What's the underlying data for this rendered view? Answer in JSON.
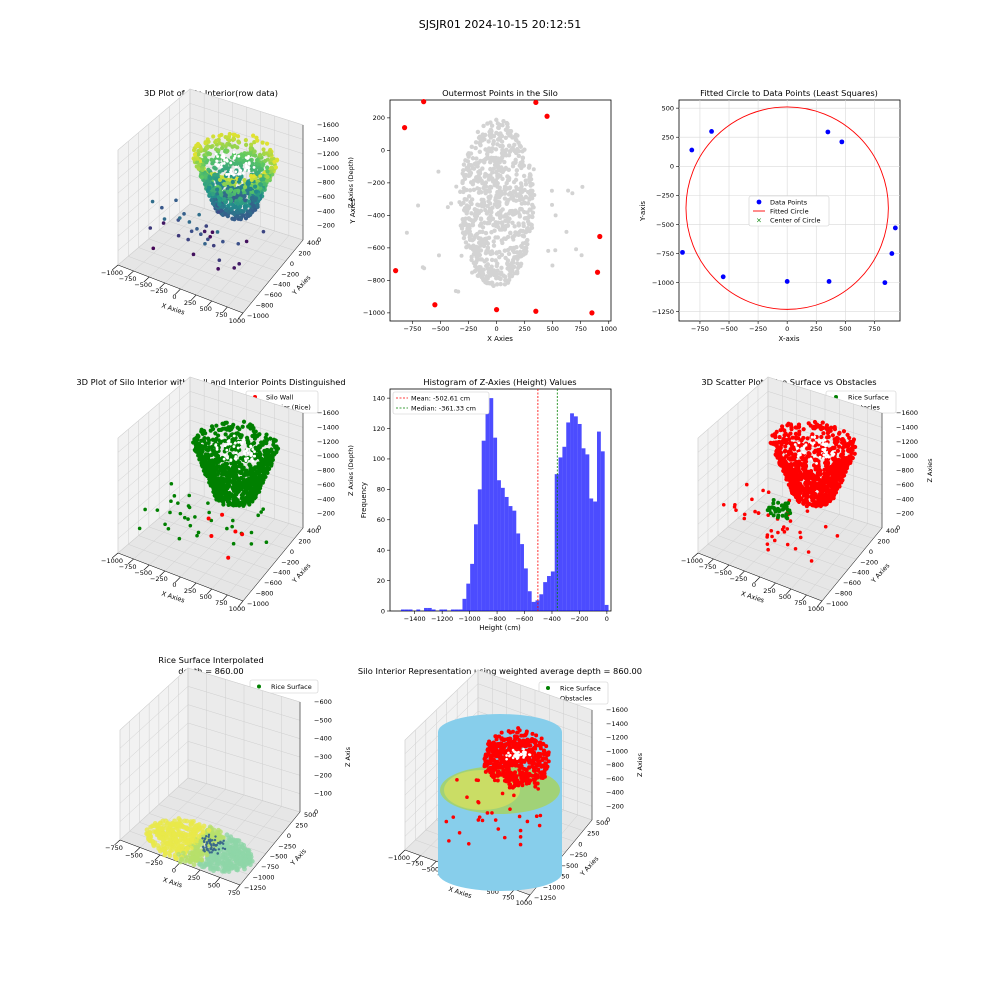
{
  "figure_title": "SJSJR01 2024-10-15 20:12:51",
  "colors": {
    "rice_green": "#008000",
    "wall_red": "#ff0000",
    "hist_blue": "#0000ff",
    "outer_red": "#ff0000",
    "inner_gray": "#d3d3d3",
    "silo_blue": "#87ceeb"
  },
  "chart_data": [
    {
      "id": "p1",
      "type": "scatter3d",
      "title": "3D Plot of Silo Interior(row data)",
      "xlabel": "X Axies",
      "ylabel": "Y Axies",
      "zlabel": "Z Axies (Depth)",
      "xticks": [
        "−1000",
        "−750",
        "−500",
        "−250",
        "0",
        "250",
        "500",
        "750",
        "1000"
      ],
      "yticks": [
        "−1000",
        "−800",
        "−600",
        "−400",
        "−200",
        "0",
        "200",
        "400"
      ],
      "zticks": [
        "0",
        "−200",
        "−400",
        "−600",
        "−800",
        "−1000",
        "−1200",
        "−1400",
        "−1600"
      ],
      "colormap": "viridis"
    },
    {
      "id": "p2",
      "type": "scatter",
      "title": "Outermost Points in the Silo",
      "xlabel": "X Axies",
      "ylabel": "Y Axies",
      "xlim": [
        -950,
        1020
      ],
      "ylim": [
        -1050,
        310
      ],
      "xticks": [
        -750,
        -500,
        -250,
        0,
        250,
        500,
        750,
        1000
      ],
      "yticks": [
        -1000,
        -800,
        -600,
        -400,
        -200,
        0,
        200
      ],
      "outer_points": [
        [
          -820,
          140
        ],
        [
          -650,
          300
        ],
        [
          350,
          295
        ],
        [
          450,
          210
        ],
        [
          920,
          -530
        ],
        [
          900,
          -750
        ],
        [
          -900,
          -740
        ],
        [
          -550,
          -950
        ],
        [
          0,
          -980
        ],
        [
          350,
          -990
        ],
        [
          850,
          -1000
        ]
      ]
    },
    {
      "id": "p3",
      "type": "scatter",
      "title": "Fitted Circle to Data Points (Least Squares)",
      "xlabel": "X-axis",
      "ylabel": "Y-axis",
      "xlim": [
        -930,
        970
      ],
      "ylim": [
        -1330,
        570
      ],
      "xticks": [
        -750,
        -500,
        -250,
        0,
        250,
        500,
        750
      ],
      "yticks": [
        -1250,
        -1000,
        -750,
        -500,
        -250,
        0,
        250,
        500
      ],
      "points": [
        [
          -820,
          140
        ],
        [
          -650,
          300
        ],
        [
          350,
          295
        ],
        [
          470,
          210
        ],
        [
          930,
          -530
        ],
        [
          900,
          -750
        ],
        [
          -900,
          -740
        ],
        [
          -550,
          -950
        ],
        [
          0,
          -990
        ],
        [
          360,
          -990
        ],
        [
          840,
          -1000
        ]
      ],
      "circle": {
        "cx": 0,
        "cy": -360,
        "r": 870
      },
      "legend": [
        "Data Points",
        "Fitted Circle",
        "Center of Circle"
      ]
    },
    {
      "id": "p4",
      "type": "scatter3d",
      "title": "3D Plot of Silo Interior with Wall and Interior Points Distinguished",
      "xlabel": "X Axies",
      "ylabel": "Y Axies",
      "zlabel": "Z Axies (Depth)",
      "xticks": [
        "−1000",
        "−750",
        "−500",
        "−250",
        "0",
        "250",
        "500",
        "750",
        "1000"
      ],
      "yticks": [
        "−1000",
        "−800",
        "−600",
        "−400",
        "−200",
        "0",
        "200",
        "400"
      ],
      "zticks": [
        "0",
        "−200",
        "−400",
        "−600",
        "−800",
        "−1000",
        "−1200",
        "−1400",
        "−1600"
      ],
      "legend": [
        "Silo Wall",
        "Interior (Rice)"
      ]
    },
    {
      "id": "p5",
      "type": "histogram",
      "title": "Histogram of Z-Axies (Height) Values",
      "xlabel": "Height (cm)",
      "ylabel": "Frequency",
      "xlim": [
        -1580,
        30
      ],
      "ylim": [
        0,
        146
      ],
      "xticks": [
        -1400,
        -1200,
        -1000,
        -800,
        -600,
        -400,
        -200,
        0
      ],
      "yticks": [
        0,
        20,
        40,
        60,
        80,
        100,
        120,
        140
      ],
      "bin_width": 28,
      "bins": [
        [
          -1500,
          1
        ],
        [
          -1472,
          1
        ],
        [
          -1444,
          1
        ],
        [
          -1416,
          0
        ],
        [
          -1388,
          1
        ],
        [
          -1360,
          0
        ],
        [
          -1332,
          2
        ],
        [
          -1304,
          2
        ],
        [
          -1276,
          1
        ],
        [
          -1248,
          0
        ],
        [
          -1220,
          1
        ],
        [
          -1192,
          1
        ],
        [
          -1164,
          0
        ],
        [
          -1136,
          1
        ],
        [
          -1108,
          1
        ],
        [
          -1080,
          1
        ],
        [
          -1052,
          8
        ],
        [
          -1024,
          18
        ],
        [
          -996,
          31
        ],
        [
          -968,
          57
        ],
        [
          -940,
          80
        ],
        [
          -912,
          112
        ],
        [
          -884,
          132
        ],
        [
          -856,
          140
        ],
        [
          -828,
          114
        ],
        [
          -800,
          86
        ],
        [
          -772,
          81
        ],
        [
          -744,
          75
        ],
        [
          -716,
          69
        ],
        [
          -688,
          66
        ],
        [
          -660,
          51
        ],
        [
          -632,
          44
        ],
        [
          -604,
          28
        ],
        [
          -576,
          13
        ],
        [
          -548,
          6
        ],
        [
          -520,
          7
        ],
        [
          -492,
          11
        ],
        [
          -464,
          19
        ],
        [
          -436,
          23
        ],
        [
          -408,
          26
        ],
        [
          -380,
          90
        ],
        [
          -352,
          101
        ],
        [
          -324,
          108
        ],
        [
          -296,
          124
        ],
        [
          -268,
          130
        ],
        [
          -240,
          128
        ],
        [
          -212,
          123
        ],
        [
          -184,
          107
        ],
        [
          -156,
          103
        ],
        [
          -128,
          74
        ],
        [
          -100,
          72
        ],
        [
          -72,
          118
        ],
        [
          -44,
          105
        ],
        [
          -16,
          4
        ]
      ],
      "mean": -502.61,
      "median": -361.33,
      "legend": [
        "Mean: -502.61 cm",
        "Median: -361.33 cm"
      ]
    },
    {
      "id": "p6",
      "type": "scatter3d",
      "title": "3D Scatter Plot: Rice Surface vs Obstacles",
      "xlabel": "X Axies",
      "ylabel": "Y Axies",
      "zlabel": "Z Axies",
      "xticks": [
        "−1000",
        "−750",
        "−500",
        "−250",
        "0",
        "250",
        "500",
        "750",
        "1000"
      ],
      "yticks": [
        "−1000",
        "−800",
        "−600",
        "−400",
        "−200",
        "0",
        "200",
        "400"
      ],
      "zticks": [
        "0",
        "−200",
        "−400",
        "−600",
        "−800",
        "−1000",
        "−1200",
        "−1400",
        "−1600"
      ],
      "legend": [
        "Rice Surface",
        "Obstacles"
      ]
    },
    {
      "id": "p7",
      "type": "surface3d",
      "title": "Rice Surface Interpolated",
      "subtitle": "depth = 860.00",
      "xlabel": "X Axis",
      "ylabel": "Y Axis",
      "zlabel": "Z Axis",
      "xticks": [
        "−750",
        "−500",
        "−250",
        "0",
        "250",
        "500",
        "750"
      ],
      "yticks": [
        "−1250",
        "−1000",
        "−750",
        "−500",
        "−250",
        "0",
        "250",
        "500"
      ],
      "zticks": [
        "0",
        "−100",
        "−200",
        "−300",
        "−400",
        "−500",
        "−600"
      ],
      "legend": [
        "Rice Surface"
      ]
    },
    {
      "id": "p8",
      "type": "scatter3d",
      "title": "Silo Interior Representation using weighted average depth = 860.00",
      "xlabel": "X Axies",
      "ylabel": "Y Axies",
      "zlabel": "Z Axies",
      "xticks": [
        "−1000",
        "−750",
        "−500",
        "−250",
        "0",
        "250",
        "500",
        "750",
        "1000"
      ],
      "yticks": [
        "−1250",
        "−1000",
        "−750",
        "−500",
        "−250",
        "0",
        "250",
        "500"
      ],
      "zticks": [
        "0",
        "−200",
        "−400",
        "−600",
        "−800",
        "−1000",
        "−1200",
        "−1400",
        "−1600"
      ],
      "legend": [
        "Rice Surface",
        "Obstacles"
      ]
    }
  ]
}
